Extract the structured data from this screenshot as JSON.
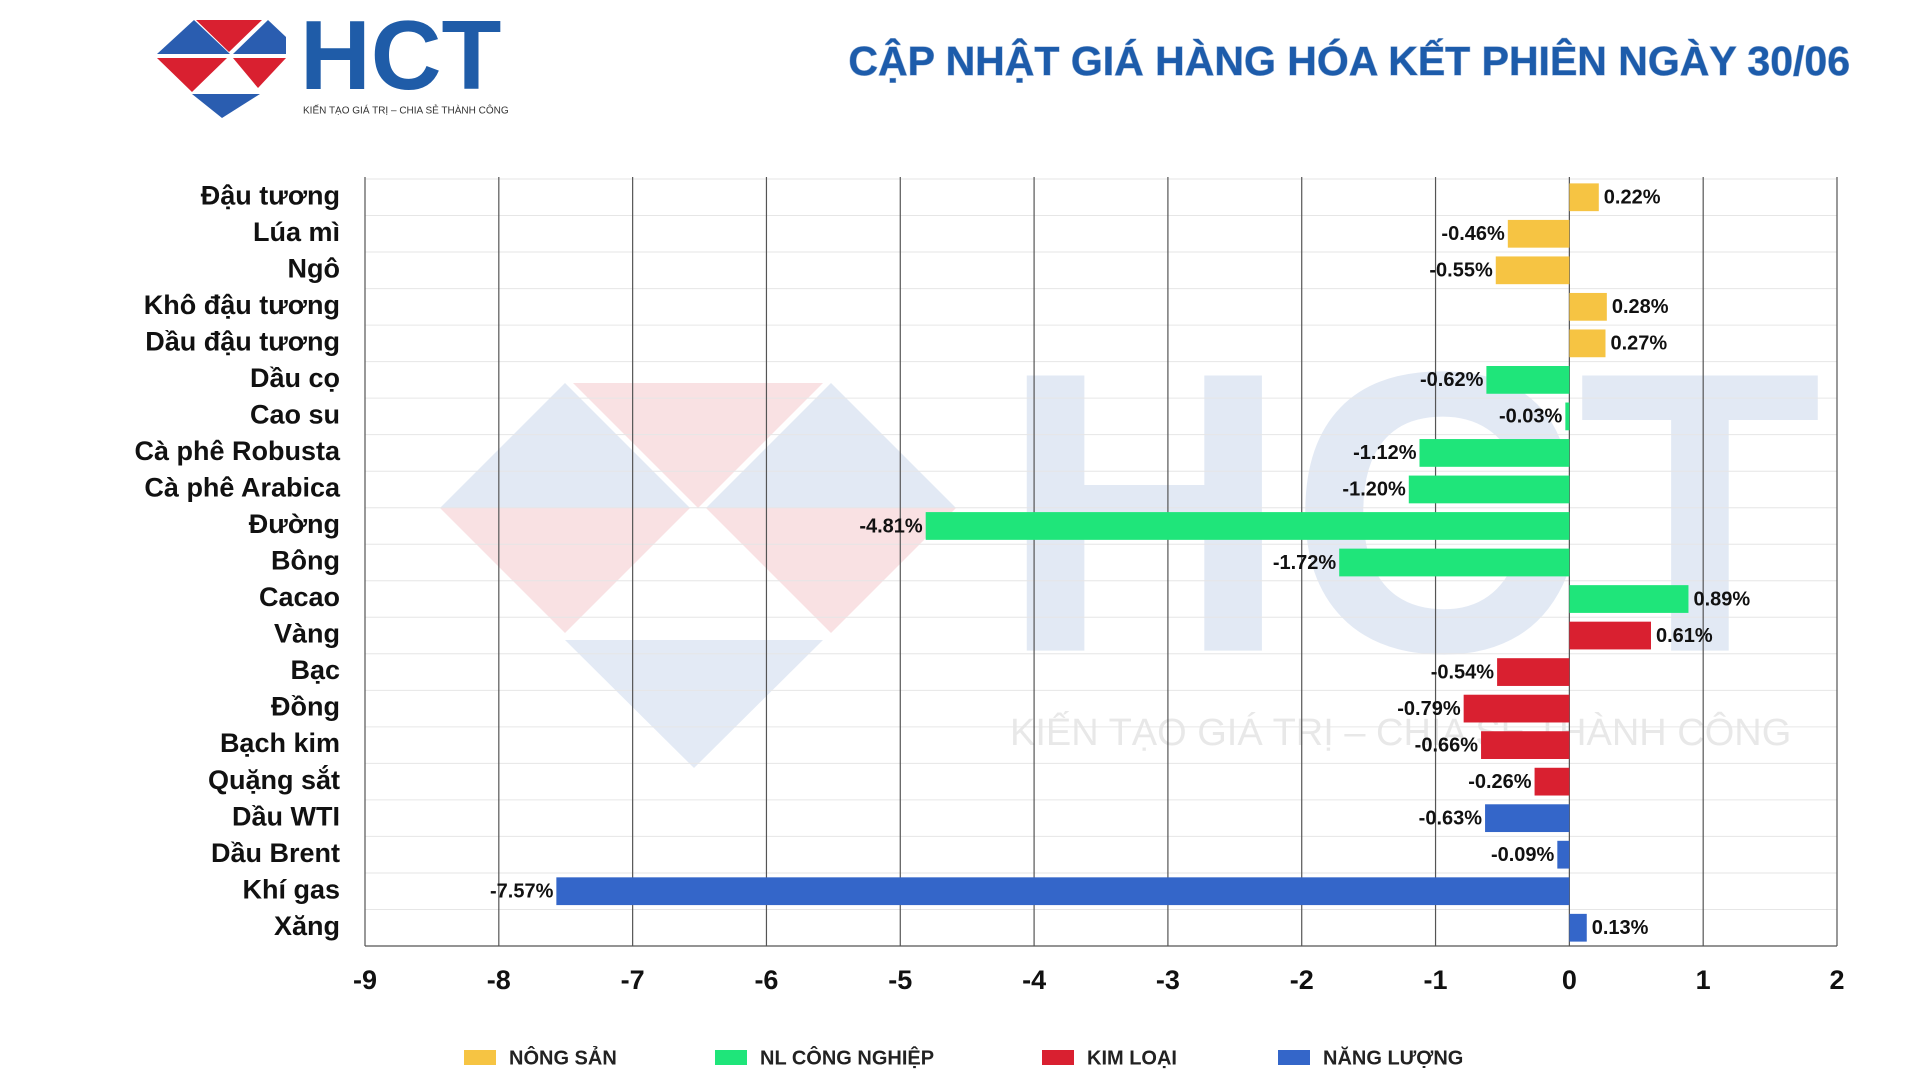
{
  "logo": {
    "name": "HCT",
    "tagline": "KIẾN TẠO GIÁ TRỊ – CHIA SẺ THÀNH CÔNG"
  },
  "chart_data": {
    "type": "bar",
    "orientation": "horizontal",
    "title": "CẬP NHẬT GIÁ HÀNG HÓA KẾT PHIÊN NGÀY 30/06",
    "categories": [
      "Đậu tương",
      "Lúa mì",
      "Ngô",
      "Khô đậu tương",
      "Dầu đậu tương",
      "Dầu cọ",
      "Cao su",
      "Cà phê Robusta",
      "Cà phê Arabica",
      "Đường",
      "Bông",
      "Cacao",
      "Vàng",
      "Bạc",
      "Đồng",
      "Bạch kim",
      "Quặng sắt",
      "Dầu WTI",
      "Dầu Brent",
      "Khí gas",
      "Xăng"
    ],
    "series": [
      {
        "name": "NÔNG SẢN",
        "color": "#f6c443",
        "values": [
          0.22,
          -0.46,
          -0.55,
          0.28,
          0.27,
          null,
          null,
          null,
          null,
          null,
          null,
          null,
          null,
          null,
          null,
          null,
          null,
          null,
          null,
          null,
          null
        ],
        "value_labels": [
          "0.22%",
          "-0.46%",
          "-0.55%",
          "0.28%",
          "0.27%",
          null,
          null,
          null,
          null,
          null,
          null,
          null,
          null,
          null,
          null,
          null,
          null,
          null,
          null,
          null,
          null
        ]
      },
      {
        "name": "NL CÔNG NGHIỆP",
        "color": "#1fe57a",
        "values": [
          null,
          null,
          null,
          null,
          null,
          -0.62,
          -0.03,
          -1.12,
          -1.2,
          -4.81,
          -1.72,
          0.89,
          null,
          null,
          null,
          null,
          null,
          null,
          null,
          null,
          null
        ],
        "value_labels": [
          null,
          null,
          null,
          null,
          null,
          "-0.62%",
          "-0.03%",
          "-1.12%",
          "-1.20%",
          "-4.81%",
          "-1.72%",
          "0.89%",
          null,
          null,
          null,
          null,
          null,
          null,
          null,
          null,
          null
        ]
      },
      {
        "name": "KIM LOẠI",
        "color": "#d92030",
        "values": [
          null,
          null,
          null,
          null,
          null,
          null,
          null,
          null,
          null,
          null,
          null,
          null,
          0.61,
          -0.54,
          -0.79,
          -0.66,
          -0.26,
          null,
          null,
          null,
          null
        ],
        "value_labels": [
          null,
          null,
          null,
          null,
          null,
          null,
          null,
          null,
          null,
          null,
          null,
          null,
          "0.61%",
          "-0.54%",
          "-0.79%",
          "-0.66%",
          "-0.26%",
          null,
          null,
          null,
          null
        ]
      },
      {
        "name": "NĂNG LƯỢNG",
        "color": "#3466c9",
        "values": [
          null,
          null,
          null,
          null,
          null,
          null,
          null,
          null,
          null,
          null,
          null,
          null,
          null,
          null,
          null,
          null,
          null,
          -0.63,
          -0.09,
          -7.57,
          0.13
        ],
        "value_labels": [
          null,
          null,
          null,
          null,
          null,
          null,
          null,
          null,
          null,
          null,
          null,
          null,
          null,
          null,
          null,
          null,
          null,
          "-0.63%",
          "-0.09%",
          "-7.57%",
          "0.13%"
        ]
      }
    ],
    "xlim": [
      -9,
      2
    ],
    "xticks": [
      -9,
      -8,
      -7,
      -6,
      -5,
      -4,
      -3,
      -2,
      -1,
      0,
      1,
      2
    ],
    "grid": true,
    "legend": "bottom"
  }
}
